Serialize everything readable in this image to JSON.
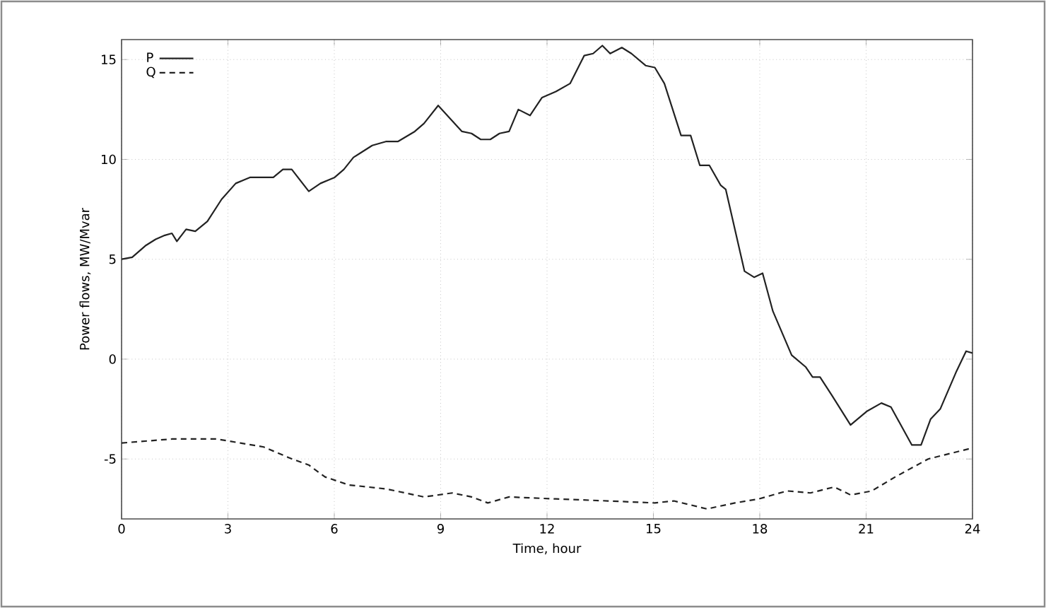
{
  "chart_data": {
    "type": "line",
    "xlabel": "Time, hour",
    "ylabel": "Power flows, MW/Mvar",
    "xlim": [
      0,
      24
    ],
    "ylim": [
      -8,
      16
    ],
    "xticks": [
      0,
      3,
      6,
      9,
      12,
      15,
      18,
      21,
      24
    ],
    "yticks": [
      -5,
      0,
      5,
      10,
      15
    ],
    "grid": true,
    "legend": "top left",
    "marker": "none",
    "series": [
      {
        "name": "P",
        "color": "#222222",
        "line_style": "solid",
        "x": [
          0,
          0.3,
          0.69,
          0.96,
          1.22,
          1.42,
          1.56,
          1.82,
          2.08,
          2.42,
          2.82,
          3.22,
          3.62,
          4.28,
          4.55,
          4.8,
          5.28,
          5.61,
          6.01,
          6.27,
          6.54,
          7.07,
          7.47,
          7.8,
          8.27,
          8.53,
          8.93,
          9.6,
          9.87,
          10.13,
          10.4,
          10.66,
          10.93,
          11.19,
          11.52,
          11.86,
          12.25,
          12.65,
          13.05,
          13.3,
          13.56,
          13.78,
          14.11,
          14.38,
          14.78,
          15.04,
          15.31,
          15.78,
          16.05,
          16.31,
          16.58,
          16.9,
          17.04,
          17.57,
          17.84,
          18.08,
          18.37,
          18.9,
          19.3,
          19.49,
          19.7,
          20.03,
          20.56,
          21.03,
          21.43,
          21.7,
          22.29,
          22.55,
          22.82,
          23.09,
          23.55,
          23.82,
          24
        ],
        "values": [
          5.0,
          5.1,
          5.7,
          6.0,
          6.2,
          6.3,
          5.9,
          6.5,
          6.4,
          6.9,
          8.0,
          8.8,
          9.1,
          9.1,
          9.5,
          9.5,
          8.4,
          8.8,
          9.1,
          9.5,
          10.1,
          10.7,
          10.9,
          10.9,
          11.4,
          11.8,
          12.7,
          11.4,
          11.3,
          11.0,
          11.0,
          11.3,
          11.4,
          12.5,
          12.2,
          13.1,
          13.4,
          13.8,
          15.2,
          15.3,
          15.7,
          15.3,
          15.6,
          15.3,
          14.7,
          14.6,
          13.8,
          11.2,
          11.2,
          9.7,
          9.7,
          8.7,
          8.5,
          4.4,
          4.1,
          4.3,
          2.4,
          0.2,
          -0.4,
          -0.9,
          -0.9,
          -1.8,
          -3.3,
          -2.6,
          -2.2,
          -2.4,
          -4.3,
          -4.3,
          -3.0,
          -2.5,
          -0.6,
          0.4,
          0.3
        ]
      },
      {
        "name": "Q",
        "color": "#222222",
        "line_style": "dashed",
        "x": [
          0,
          1.42,
          2.68,
          3.35,
          4.01,
          4.81,
          5.28,
          5.74,
          6.41,
          7.47,
          8.53,
          9.33,
          9.87,
          10.33,
          10.93,
          12.25,
          13.72,
          15.04,
          15.58,
          16.51,
          17.3,
          17.97,
          18.77,
          19.43,
          20.1,
          20.56,
          21.16,
          21.82,
          22.75,
          23.88,
          24
        ],
        "values": [
          -4.2,
          -4.0,
          -4.0,
          -4.2,
          -4.4,
          -5.0,
          -5.3,
          -5.9,
          -6.3,
          -6.5,
          -6.9,
          -6.7,
          -6.9,
          -7.2,
          -6.9,
          -7.0,
          -7.1,
          -7.2,
          -7.1,
          -7.5,
          -7.2,
          -7.0,
          -6.6,
          -6.7,
          -6.4,
          -6.8,
          -6.6,
          -5.9,
          -5.0,
          -4.5,
          -4.5
        ]
      }
    ]
  }
}
